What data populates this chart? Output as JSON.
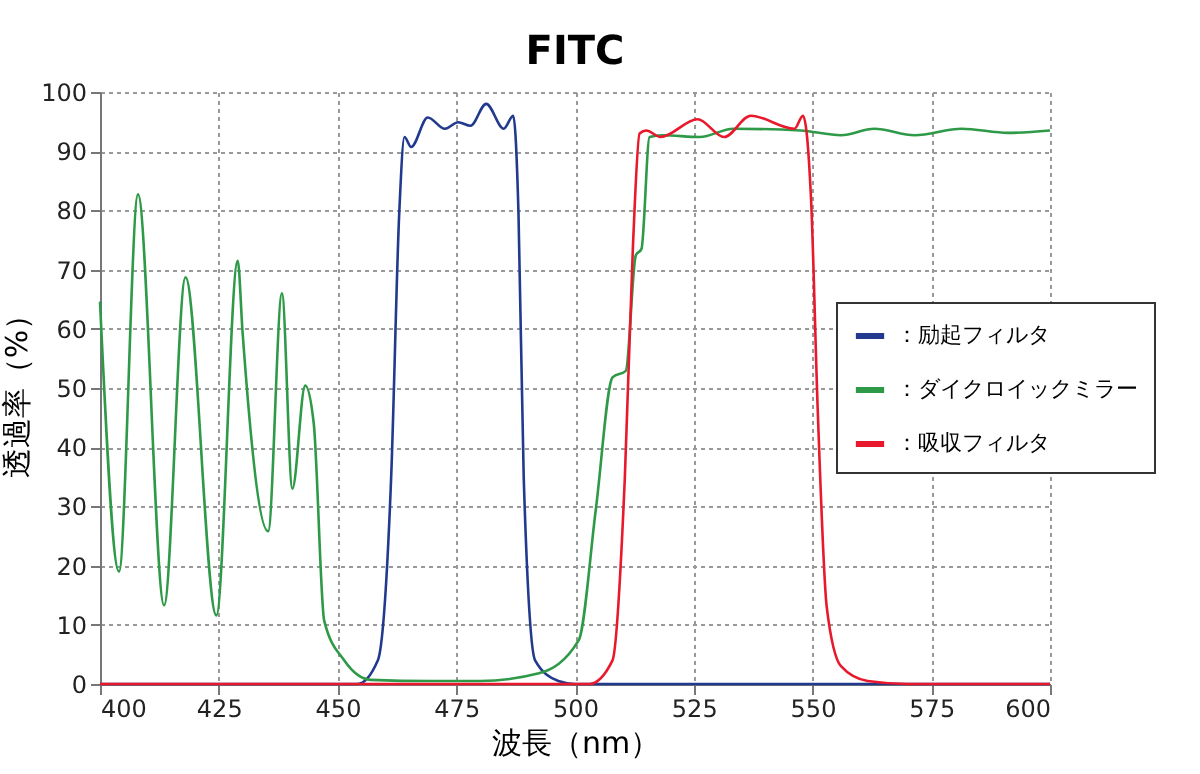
{
  "chart_data": {
    "type": "line",
    "title": "FITC",
    "xlabel": "波長（nm）",
    "ylabel": "透過率（%）",
    "xlim": [
      400,
      600
    ],
    "xticks": [
      400,
      425,
      450,
      475,
      500,
      525,
      550,
      575,
      600
    ],
    "ylim": [
      0,
      100
    ],
    "yticks": [
      0,
      10,
      20,
      30,
      40,
      50,
      60,
      70,
      80,
      90,
      100
    ],
    "grid": true,
    "legend": "right",
    "line_style": "solid",
    "marker": "none",
    "series": [
      {
        "name": "：励起フィルタ",
        "color": "#223a8e",
        "x": [
          400,
          450,
          454.2,
          458.5,
          461.3,
          463,
          464.1,
          465.5,
          469,
          472.6,
          475.4,
          478,
          481.3,
          485,
          487,
          488.1,
          489.2,
          491.6,
          496.5,
          500,
          600
        ],
        "values": [
          0,
          0,
          0,
          4,
          35,
          79.6,
          92.4,
          90.7,
          95.7,
          93.8,
          94.9,
          94.3,
          98,
          93.8,
          96,
          79.6,
          35,
          4,
          0.5,
          0,
          0
        ]
      },
      {
        "name": "：ダイクロイックミラー",
        "color": "#2e9a48",
        "x": [
          400,
          404,
          408,
          413.5,
          418,
          424.5,
          429,
          430,
          435.4,
          438.3,
          440.5,
          443.2,
          445,
          447.2,
          451.4,
          457,
          470,
          480,
          492.4,
          500.8,
          504.4,
          507.9,
          510.7,
          512.8,
          514,
          515.7,
          518.4,
          526.3,
          533.3,
          547.5,
          556,
          563,
          571.5,
          581.4,
          591.2,
          600
        ],
        "values": [
          64.6,
          19,
          82.7,
          13.3,
          68.7,
          11.6,
          71.5,
          59.6,
          25.8,
          66,
          33,
          50.4,
          44,
          10.7,
          4,
          0.7,
          0.5,
          0.5,
          1.8,
          7.4,
          29.6,
          51.8,
          52.9,
          72.4,
          73.5,
          92.4,
          92.7,
          92.4,
          93.8,
          93.5,
          92.7,
          93.8,
          92.7,
          93.8,
          93.1,
          93.5
        ]
      },
      {
        "name": "：吸収フィルタ",
        "color": "#e8192c",
        "x": [
          400,
          500,
          503,
          507.9,
          510.5,
          512.2,
          513.6,
          515,
          518,
          525.8,
          531.4,
          537,
          546.2,
          548,
          549.7,
          551.1,
          553,
          556,
          561.6,
          570,
          600
        ],
        "values": [
          0,
          0,
          0,
          4,
          35,
          74,
          93,
          93.5,
          92.4,
          95.4,
          92.4,
          96,
          93.8,
          96,
          81.8,
          46.3,
          13,
          3,
          0.5,
          0,
          0
        ]
      }
    ]
  }
}
